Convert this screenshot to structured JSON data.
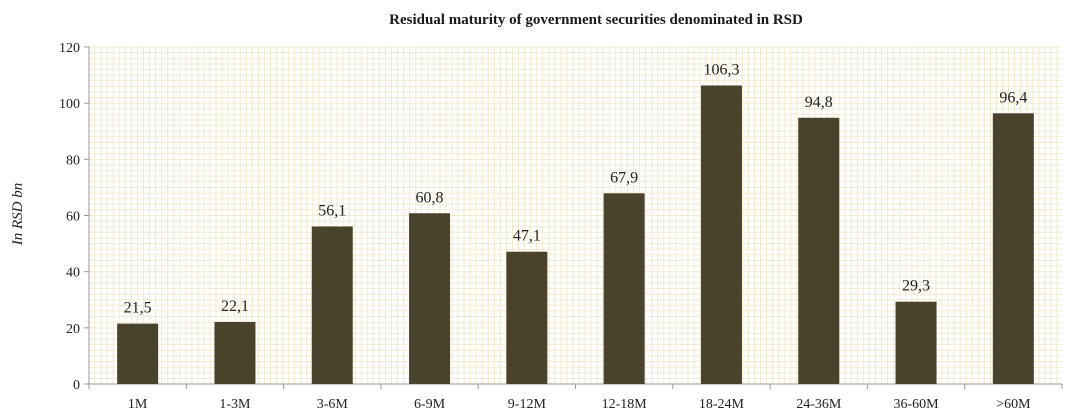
{
  "chart_data": {
    "type": "bar",
    "title": "Residual maturity of government securities denominated in RSD",
    "xlabel": "",
    "ylabel": "In RSD bn",
    "categories": [
      "1M",
      "1-3M",
      "3-6M",
      "6-9M",
      "9-12M",
      "12-18M",
      "18-24M",
      "24-36M",
      "36-60M",
      ">60M"
    ],
    "values": [
      21.5,
      22.1,
      56.1,
      60.8,
      47.1,
      67.9,
      106.3,
      94.8,
      29.3,
      96.4
    ],
    "value_labels": [
      "21,5",
      "22,1",
      "56,1",
      "60,8",
      "47,1",
      "67,9",
      "106,3",
      "94,8",
      "29,3",
      "96,4"
    ],
    "ylim": [
      0,
      120
    ],
    "yticks": [
      "0",
      "20",
      "40",
      "60",
      "80",
      "100",
      "120"
    ],
    "grid": true,
    "legend": "none",
    "colors": {
      "bar": "#4a432b",
      "grid": "#f2ead0",
      "axis": "#999999"
    }
  }
}
